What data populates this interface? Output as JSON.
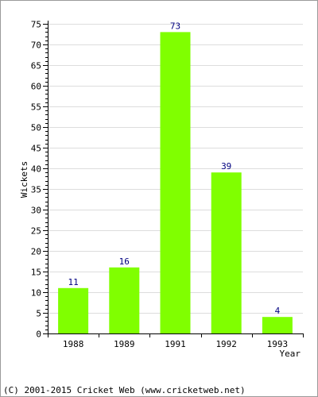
{
  "chart_data": {
    "type": "bar",
    "categories": [
      "1988",
      "1989",
      "1991",
      "1992",
      "1993"
    ],
    "values": [
      11,
      16,
      73,
      39,
      4
    ],
    "xlabel": "Year",
    "ylabel": "Wickets",
    "ylim": [
      0,
      75
    ],
    "yticks": [
      0,
      5,
      10,
      15,
      20,
      25,
      30,
      35,
      40,
      45,
      50,
      55,
      60,
      65,
      70,
      75
    ],
    "grid": true,
    "data_labels": true
  },
  "colors": {
    "bar": "#80ff00",
    "grid": "#dddddd",
    "data_label": "#000080",
    "axis": "#000000"
  },
  "footer": "(C) 2001-2015 Cricket Web (www.cricketweb.net)"
}
